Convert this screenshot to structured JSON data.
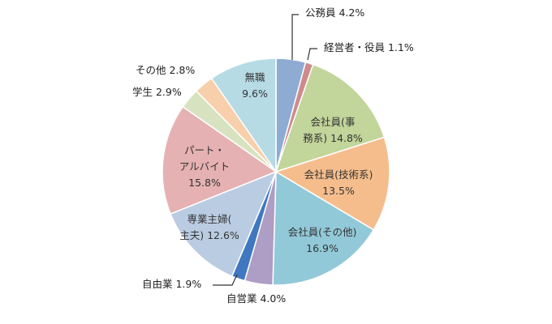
{
  "chart_data": {
    "type": "pie",
    "title": "",
    "unit": "%",
    "start": "12 o'clock",
    "direction": "clockwise",
    "legend": "none",
    "slices": [
      {
        "label": "公務員",
        "value": 4.2,
        "color": "#8eacd2",
        "label_position": "outside"
      },
      {
        "label": "経営者・役員",
        "value": 1.1,
        "color": "#cf8a8e",
        "label_position": "outside"
      },
      {
        "label": "会社員(事務系)",
        "value": 14.8,
        "color": "#c2d59a",
        "label_position": "inside"
      },
      {
        "label": "会社員(技術系)",
        "value": 13.5,
        "color": "#f5bd8c",
        "label_position": "inside"
      },
      {
        "label": "会社員(その他)",
        "value": 16.9,
        "color": "#92c9d8",
        "label_position": "inside"
      },
      {
        "label": "自営業",
        "value": 4.0,
        "color": "#ae9dc4",
        "label_position": "outside"
      },
      {
        "label": "自由業",
        "value": 1.9,
        "color": "#3f78c1",
        "label_position": "outside"
      },
      {
        "label": "専業主婦(主夫)",
        "value": 12.6,
        "color": "#bacce2",
        "label_position": "inside"
      },
      {
        "label": "パート・アルバイト",
        "value": 15.8,
        "color": "#e6b1b2",
        "label_position": "inside"
      },
      {
        "label": "学生",
        "value": 2.9,
        "color": "#d7e3c0",
        "label_position": "outside"
      },
      {
        "label": "その他",
        "value": 2.8,
        "color": "#f8cfab",
        "label_position": "outside"
      },
      {
        "label": "無職",
        "value": 9.6,
        "color": "#b6dbe5",
        "label_position": "inside"
      }
    ]
  }
}
